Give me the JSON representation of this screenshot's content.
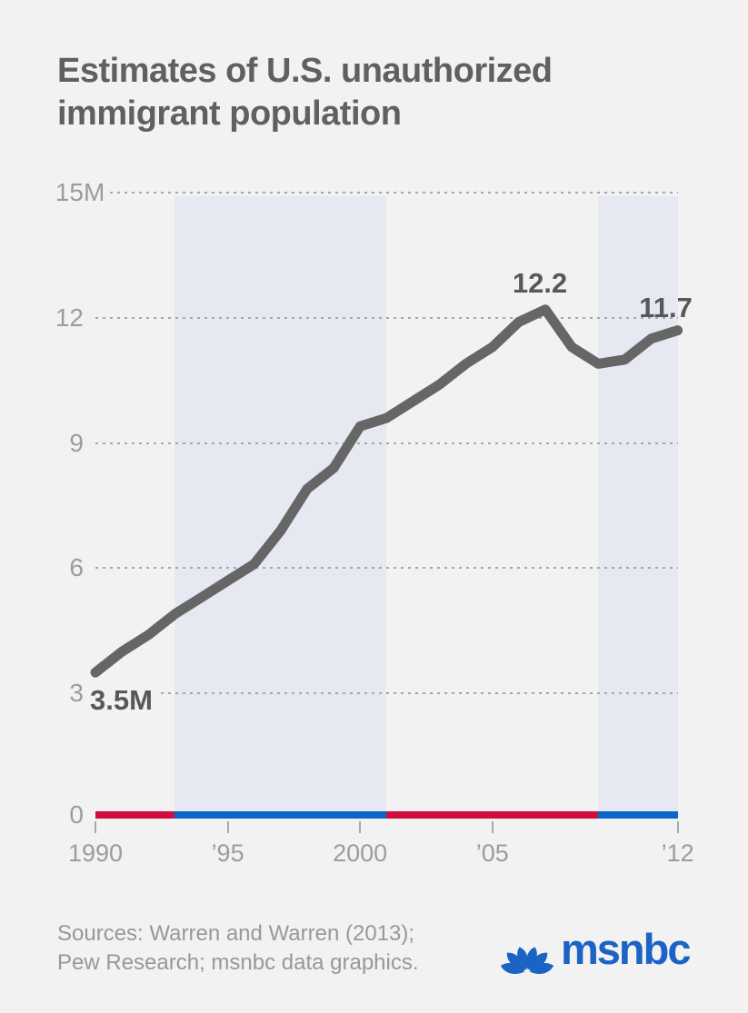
{
  "title": {
    "line1": "Estimates of U.S. unauthorized",
    "line2": "immigrant population"
  },
  "chart_data": {
    "type": "line",
    "title": "Estimates of U.S. unauthorized immigrant population",
    "x": [
      1990,
      1991,
      1992,
      1993,
      1994,
      1995,
      1996,
      1997,
      1998,
      1999,
      2000,
      2001,
      2002,
      2003,
      2004,
      2005,
      2006,
      2007,
      2008,
      2009,
      2010,
      2011,
      2012
    ],
    "values": [
      3.5,
      4.0,
      4.4,
      4.9,
      5.3,
      5.7,
      6.1,
      6.9,
      7.9,
      8.4,
      9.4,
      9.6,
      10.0,
      10.4,
      10.9,
      11.3,
      11.9,
      12.2,
      11.3,
      10.9,
      11.0,
      11.5,
      11.7
    ],
    "unit": "millions",
    "ylim": [
      0,
      15
    ],
    "xlim": [
      1990,
      2012
    ],
    "grid": "horizontal-dotted",
    "y_ticks": [
      {
        "num": "15",
        "suffix": "M",
        "value": 15,
        "grid": true
      },
      {
        "num": "12",
        "suffix": "",
        "value": 12,
        "grid": true
      },
      {
        "num": "9",
        "suffix": "",
        "value": 9,
        "grid": true
      },
      {
        "num": "6",
        "suffix": "",
        "value": 6,
        "grid": true
      },
      {
        "num": "3",
        "suffix": "",
        "value": 3,
        "grid": true
      },
      {
        "num": "0",
        "suffix": "",
        "value": 0,
        "grid": false
      }
    ],
    "x_ticks": [
      {
        "label": "1990",
        "year": 1990
      },
      {
        "label": "’95",
        "year": 1995
      },
      {
        "label": "2000",
        "year": 2000
      },
      {
        "label": "’05",
        "year": 2005
      },
      {
        "label": "’12",
        "year": 2012
      }
    ],
    "annotations": [
      {
        "text": "3.5M",
        "year": 1990,
        "value": 3.5,
        "placement": "start"
      },
      {
        "text": "12.2",
        "year": 2007,
        "value": 12.2,
        "placement": "peak"
      },
      {
        "text": "11.7",
        "year": 2012,
        "value": 11.7,
        "placement": "end"
      }
    ],
    "shaded_bands": [
      {
        "from": 1993,
        "to": 2001
      },
      {
        "from": 2009,
        "to": 2012
      }
    ],
    "party_bar": [
      {
        "from": 1990,
        "to": 1993,
        "party": "R"
      },
      {
        "from": 1993,
        "to": 2001,
        "party": "D"
      },
      {
        "from": 2001,
        "to": 2009,
        "party": "R"
      },
      {
        "from": 2009,
        "to": 2012,
        "party": "D"
      }
    ]
  },
  "footer": {
    "sources_line1": "Sources: Warren and Warren (2013);",
    "sources_line2": "Pew Research; msnbc data graphics.",
    "logo_text": "msnbc"
  },
  "colors": {
    "background": "#f2f2f3",
    "band": "#e6e9f1",
    "line": "#666667",
    "grid": "#a7a7a9",
    "title_text": "#5f6062",
    "axis_text": "#9c9ca0",
    "data_label_text": "#57585a",
    "R": "#ce0e3e",
    "D": "#0967c8",
    "logo_blue": "#1b64c6"
  }
}
